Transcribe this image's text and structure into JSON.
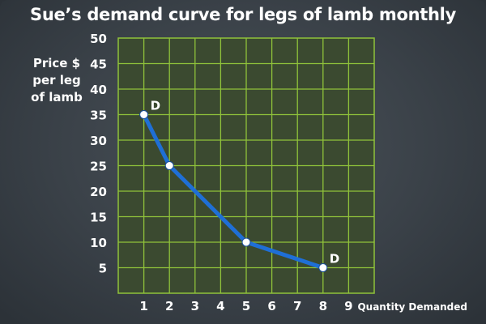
{
  "chart_data": {
    "type": "line",
    "title": "Sue’s demand curve for legs of lamb monthly",
    "ylabel_lines": [
      "Price $",
      "per leg",
      "of lamb"
    ],
    "xlabel": "Quantity Demanded",
    "x_ticks": [
      1,
      2,
      3,
      4,
      5,
      6,
      7,
      8,
      9
    ],
    "y_ticks": [
      5,
      10,
      15,
      20,
      25,
      30,
      35,
      40,
      45,
      50
    ],
    "xlim": [
      0,
      10
    ],
    "ylim": [
      0,
      50
    ],
    "grid": true,
    "series": [
      {
        "points": [
          {
            "x": 1,
            "y": 35
          },
          {
            "x": 2,
            "y": 25
          },
          {
            "x": 5,
            "y": 10
          },
          {
            "x": 8,
            "y": 5
          }
        ]
      }
    ],
    "annotations": [
      {
        "text": "D",
        "x": 1,
        "y": 35
      },
      {
        "text": "D",
        "x": 8,
        "y": 5
      }
    ],
    "colors": {
      "line": "#1f6fd6",
      "grid": "#8fc23a",
      "plot_bg": "#3b4a30",
      "point": "#ffffff"
    }
  }
}
